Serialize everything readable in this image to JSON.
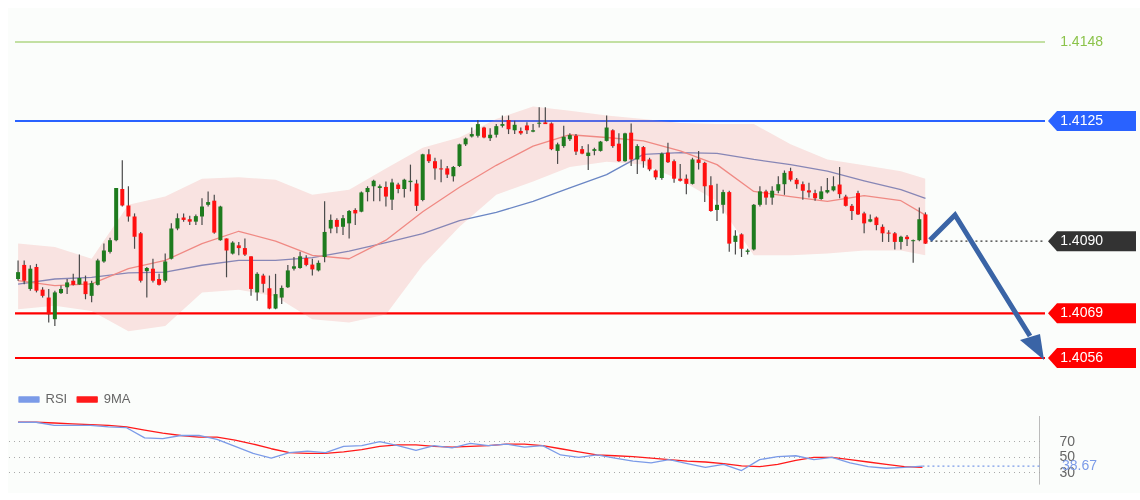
{
  "chart_data": [
    {
      "type": "candlestick",
      "categories": [
        null,
        null,
        null,
        null,
        null,
        null,
        null,
        null,
        null,
        null,
        null,
        null,
        null,
        null,
        null,
        null,
        null,
        null,
        null,
        null,
        null,
        null,
        null,
        null,
        null,
        null,
        null,
        null,
        null,
        null,
        null,
        null,
        null,
        null,
        null,
        null,
        null,
        null,
        null,
        null,
        null,
        null,
        null,
        null,
        null,
        null,
        null,
        null,
        null,
        null,
        null,
        null,
        null,
        null,
        null,
        null,
        null,
        null,
        null,
        null,
        null,
        null,
        null,
        null,
        null,
        null,
        null,
        null,
        null,
        null,
        null,
        null,
        null,
        null,
        null,
        null,
        null,
        null,
        null,
        null,
        null,
        null,
        null,
        null,
        null,
        null,
        null,
        null,
        null,
        null,
        null,
        null,
        null,
        null,
        null,
        null,
        null,
        null,
        null,
        null,
        null,
        null,
        null,
        null,
        null,
        null,
        null,
        null,
        null,
        null,
        null,
        null,
        null,
        null,
        null,
        null,
        null,
        null,
        null,
        null,
        null,
        null,
        null,
        null,
        null,
        null,
        null,
        null,
        null,
        null,
        null,
        null,
        null,
        null,
        null,
        null,
        null,
        null,
        null,
        null,
        null,
        null,
        null,
        null,
        null,
        null,
        null,
        null,
        null,
        null,
        null,
        null,
        null,
        null,
        null,
        null,
        null,
        null,
        null,
        null,
        null,
        null,
        null,
        null,
        null,
        null,
        null,
        null
      ],
      "ohlc": [
        [
          1.4079,
          1.40844,
          1.40785,
          1.4081
        ],
        [
          1.40831,
          1.40844,
          1.40775,
          1.40785
        ],
        [
          1.40761,
          1.4083,
          1.40756,
          1.4082
        ],
        [
          1.40825,
          1.40834,
          1.40751,
          1.40756
        ],
        [
          1.40759,
          1.40766,
          1.40736,
          1.40741
        ],
        [
          1.40736,
          1.40761,
          1.40663,
          1.40687
        ],
        [
          1.40673,
          1.40756,
          1.40653,
          1.40751
        ],
        [
          1.40749,
          1.40771,
          1.40746,
          1.40761
        ],
        [
          1.40766,
          1.4079,
          1.40746,
          1.4078
        ],
        [
          1.40785,
          1.40805,
          1.40771,
          1.40773
        ],
        [
          1.40774,
          1.40861,
          1.40773,
          1.40793
        ],
        [
          1.40783,
          1.408,
          1.40731,
          1.40746
        ],
        [
          1.40741,
          1.40785,
          1.40722,
          1.40778
        ],
        [
          1.40773,
          1.40849,
          1.40771,
          1.40844
        ],
        [
          1.40841,
          1.40893,
          1.40837,
          1.40873
        ],
        [
          1.40869,
          1.4091,
          1.40864,
          1.40903
        ],
        [
          1.40903,
          1.41055,
          1.409,
          1.41055
        ],
        [
          1.41052,
          1.41136,
          1.41001,
          1.41004
        ],
        [
          1.41004,
          1.4106,
          1.40957,
          1.40972
        ],
        [
          1.40972,
          1.40981,
          1.40878,
          1.40913
        ],
        [
          1.40923,
          1.40927,
          1.4078,
          1.40785
        ],
        [
          1.40813,
          1.40825,
          1.40736,
          1.40822
        ],
        [
          1.4082,
          1.40849,
          1.4078,
          1.40785
        ],
        [
          1.4079,
          1.40805,
          1.40771,
          1.40773
        ],
        [
          1.40785,
          1.40864,
          1.4078,
          1.40841
        ],
        [
          1.40849,
          1.40952,
          1.40847,
          1.40937
        ],
        [
          1.40937,
          1.40981,
          1.40932,
          1.40967
        ],
        [
          1.40969,
          1.40981,
          1.40957,
          1.40962
        ],
        [
          1.40964,
          1.40974,
          1.40947,
          1.40957
        ],
        [
          1.40957,
          1.40978,
          1.40947,
          1.40973
        ],
        [
          1.40972,
          1.41025,
          1.40947,
          1.41001
        ],
        [
          1.41006,
          1.41045,
          1.41001,
          1.41014
        ],
        [
          1.41018,
          1.41035,
          1.40922,
          1.40925
        ],
        [
          1.40903,
          1.41003,
          1.40901,
          1.41001
        ],
        [
          1.40908,
          1.40908,
          1.40795,
          1.40873
        ],
        [
          1.40864,
          1.409,
          1.40861,
          1.40896
        ],
        [
          1.40888,
          1.40898,
          1.40859,
          1.4088
        ],
        [
          1.4088,
          1.40908,
          1.40857,
          1.40861
        ],
        [
          1.40856,
          1.40856,
          1.40741,
          1.40761
        ],
        [
          1.40751,
          1.4081,
          1.40727,
          1.40805
        ],
        [
          1.408,
          1.40805,
          1.40751,
          1.40776
        ],
        [
          1.40763,
          1.408,
          1.40702,
          1.40704
        ],
        [
          1.40704,
          1.40805,
          1.40702,
          1.40746
        ],
        [
          1.40736,
          1.40771,
          1.40717,
          1.40764
        ],
        [
          1.40766,
          1.40831,
          1.40764,
          1.40815
        ],
        [
          1.4082,
          1.40854,
          1.40815,
          1.40827
        ],
        [
          1.40822,
          1.40869,
          1.4082,
          1.40856
        ],
        [
          1.40851,
          1.40859,
          1.40827,
          1.40831
        ],
        [
          1.40832,
          1.40849,
          1.408,
          1.40818
        ],
        [
          1.40815,
          1.40844,
          1.40812,
          1.40837
        ],
        [
          1.40854,
          1.41016,
          1.40839,
          1.40927
        ],
        [
          1.40937,
          1.40978,
          1.40923,
          1.40962
        ],
        [
          1.40962,
          1.40967,
          1.40923,
          1.40942
        ],
        [
          1.40942,
          1.40976,
          1.40918,
          1.40967
        ],
        [
          1.40952,
          1.40991,
          1.40908,
          1.40988
        ],
        [
          1.40991,
          1.40996,
          1.40947,
          1.40981
        ],
        [
          1.40986,
          1.41045,
          1.40984,
          1.41042
        ],
        [
          1.41043,
          1.4106,
          1.41016,
          1.41055
        ],
        [
          1.4106,
          1.41079,
          1.41016,
          1.41076
        ],
        [
          1.41055,
          1.41065,
          1.41016,
          1.4106
        ],
        [
          1.41058,
          1.41074,
          1.41001,
          1.4103
        ],
        [
          1.41021,
          1.41082,
          1.40991,
          1.41071
        ],
        [
          1.41065,
          1.4107,
          1.4104,
          1.41052
        ],
        [
          1.41052,
          1.41082,
          1.41027,
          1.41079
        ],
        [
          1.41072,
          1.41123,
          1.41045,
          1.41076
        ],
        [
          1.41068,
          1.41079,
          1.40988,
          1.41003
        ],
        [
          1.4102,
          1.41155,
          1.41016,
          1.41153
        ],
        [
          1.41153,
          1.41168,
          1.41128,
          1.41133
        ],
        [
          1.41133,
          1.41143,
          1.41079,
          1.41112
        ],
        [
          1.41112,
          1.41138,
          1.41072,
          1.41109
        ],
        [
          1.41112,
          1.41119,
          1.41084,
          1.41094
        ],
        [
          1.41089,
          1.41119,
          1.41074,
          1.41116
        ],
        [
          1.41119,
          1.41184,
          1.41116,
          1.41182
        ],
        [
          1.41182,
          1.41202,
          1.41177,
          1.41199
        ],
        [
          1.41205,
          1.41231,
          1.41202,
          1.41212
        ],
        [
          1.41207,
          1.41253,
          1.41202,
          1.41241
        ],
        [
          1.41231,
          1.41233,
          1.412,
          1.41202
        ],
        [
          1.412,
          1.41229,
          1.41192,
          1.4121
        ],
        [
          1.4121,
          1.41241,
          1.41202,
          1.41235
        ],
        [
          1.41236,
          1.41266,
          1.41231,
          1.41241
        ],
        [
          1.41253,
          1.41266,
          1.41212,
          1.41226
        ],
        [
          1.41223,
          1.41251,
          1.41212,
          1.41239
        ],
        [
          1.41221,
          1.41231,
          1.4121,
          1.41214
        ],
        [
          1.41237,
          1.41246,
          1.41212,
          1.41223
        ],
        [
          1.41219,
          1.41241,
          1.41217,
          1.41223
        ],
        [
          1.41243,
          1.4129,
          1.41231,
          1.41245
        ],
        [
          1.41246,
          1.4129,
          1.41241,
          1.41241
        ],
        [
          1.41243,
          1.41246,
          1.41165,
          1.41168
        ],
        [
          1.41163,
          1.41187,
          1.41125,
          1.41182
        ],
        [
          1.41177,
          1.41236,
          1.41172,
          1.41204
        ],
        [
          1.41197,
          1.41214,
          1.41192,
          1.41209
        ],
        [
          1.41207,
          1.41212,
          1.41151,
          1.41161
        ],
        [
          1.41168,
          1.41177,
          1.41153,
          1.41155
        ],
        [
          1.41148,
          1.41182,
          1.41107,
          1.41158
        ],
        [
          1.41163,
          1.41172,
          1.4115,
          1.41168
        ],
        [
          1.41163,
          1.41192,
          1.41161,
          1.4119
        ],
        [
          1.41192,
          1.41266,
          1.4119,
          1.41231
        ],
        [
          1.41223,
          1.41226,
          1.41172,
          1.41177
        ],
        [
          1.41184,
          1.41214,
          1.41131,
          1.41133
        ],
        [
          1.41133,
          1.41216,
          1.41131,
          1.41214
        ],
        [
          1.41216,
          1.41243,
          1.41119,
          1.41138
        ],
        [
          1.41138,
          1.41182,
          1.41096,
          1.41177
        ],
        [
          1.41174,
          1.41177,
          1.41114,
          1.41133
        ],
        [
          1.41138,
          1.41143,
          1.41104,
          1.41109
        ],
        [
          1.41106,
          1.41109,
          1.41079,
          1.41086
        ],
        [
          1.41084,
          1.41158,
          1.41079,
          1.41155
        ],
        [
          1.41158,
          1.41187,
          1.41128,
          1.4113
        ],
        [
          1.41133,
          1.41138,
          1.4107,
          1.41082
        ],
        [
          1.41082,
          1.41125,
          1.41074,
          1.41076
        ],
        [
          1.41082,
          1.41094,
          1.41037,
          1.41067
        ],
        [
          1.41067,
          1.41143,
          1.41065,
          1.41138
        ],
        [
          1.41138,
          1.41163,
          1.41109,
          1.41128
        ],
        [
          1.41128,
          1.41131,
          1.41014,
          1.4106
        ],
        [
          1.41063,
          1.41089,
          1.40986,
          1.40988
        ],
        [
          1.40991,
          1.41067,
          1.40959,
          1.41006
        ],
        [
          1.41006,
          1.4105,
          1.40981,
          1.41043
        ],
        [
          1.41043,
          1.41047,
          1.40869,
          1.40893
        ],
        [
          1.40898,
          1.40932,
          1.40861,
          1.40916
        ],
        [
          1.4092,
          1.40923,
          1.40854,
          1.40878
        ],
        [
          1.40869,
          1.40878,
          1.40861,
          1.40873
        ],
        [
          1.40876,
          1.41008,
          1.40873,
          1.41006
        ],
        [
          1.41006,
          1.4106,
          1.41001,
          1.41045
        ],
        [
          1.41045,
          1.4105,
          1.41006,
          1.41027
        ],
        [
          1.41027,
          1.4106,
          1.41006,
          1.41047
        ],
        [
          1.41047,
          1.41089,
          1.4104,
          1.41066
        ],
        [
          1.41066,
          1.41106,
          1.41035,
          1.41099
        ],
        [
          1.41104,
          1.41114,
          1.41074,
          1.41079
        ],
        [
          1.41079,
          1.41084,
          1.41053,
          1.41066
        ],
        [
          1.41066,
          1.41074,
          1.41021,
          1.41047
        ],
        [
          1.41048,
          1.4107,
          1.41027,
          1.41042
        ],
        [
          1.4104,
          1.4105,
          1.41018,
          1.41025
        ],
        [
          1.41023,
          1.4106,
          1.41021,
          1.41045
        ],
        [
          1.41042,
          1.41084,
          1.41039,
          1.41049
        ],
        [
          1.41048,
          1.41089,
          1.41045,
          1.4106
        ],
        [
          1.41065,
          1.41116,
          1.41025,
          1.41037
        ],
        [
          1.4103,
          1.41035,
          1.41001,
          1.41003
        ],
        [
          1.41003,
          1.41008,
          1.40962,
          1.40988
        ],
        [
          1.4104,
          1.41047,
          1.40976,
          1.40978
        ],
        [
          1.40981,
          1.40986,
          1.40923,
          1.40952
        ],
        [
          1.40957,
          1.40978,
          1.40955,
          1.40964
        ],
        [
          1.40969,
          1.40972,
          1.40932,
          1.40947
        ],
        [
          1.40942,
          1.40949,
          1.40898,
          1.40923
        ],
        [
          1.40925,
          1.40932,
          1.40898,
          1.40923
        ],
        [
          1.40923,
          1.40927,
          1.40876,
          1.40898
        ],
        [
          1.40898,
          1.40916,
          1.40876,
          1.40913
        ],
        [
          1.40913,
          1.40918,
          1.40886,
          1.40906
        ],
        [
          1.40901,
          1.40905,
          1.40837,
          1.40903
        ],
        [
          1.40903,
          1.40998,
          1.409,
          1.40964
        ],
        [
          1.40978,
          1.40984,
          1.40892,
          1.40893
        ],
        null,
        null,
        null,
        null,
        null,
        null,
        null,
        null,
        null,
        null,
        null,
        null,
        null,
        null,
        null,
        null,
        null,
        null,
        null
      ],
      "series": [
        {
          "type": "line",
          "color": "#f08a84",
          "values": [
            1.40785,
            null,
            null,
            null,
            null,
            null,
            1.40771,
            null,
            null,
            null,
            null,
            null,
            1.40776,
            null,
            null,
            null,
            null,
            null,
            1.4082,
            null,
            null,
            null,
            null,
            null,
            1.40844,
            null,
            null,
            null,
            null,
            null,
            1.40893,
            null,
            null,
            null,
            null,
            null,
            1.40929,
            null,
            null,
            null,
            null,
            null,
            1.409,
            null,
            null,
            null,
            null,
            null,
            1.40859,
            null,
            null,
            null,
            null,
            null,
            1.40849,
            null,
            null,
            null,
            null,
            null,
            1.40903,
            null,
            null,
            null,
            null,
            null,
            1.40986,
            null,
            null,
            null,
            null,
            null,
            1.41057,
            null,
            null,
            null,
            null,
            null,
            1.41121,
            null,
            null,
            null,
            null,
            null,
            1.41177,
            null,
            null,
            null,
            null,
            null,
            1.4121,
            null,
            null,
            null,
            null,
            null,
            1.41202,
            null,
            null,
            null,
            null,
            null,
            1.41192,
            null,
            null,
            null,
            null,
            null,
            1.41163,
            null,
            null,
            null,
            null,
            null,
            1.41123,
            null,
            null,
            null,
            null,
            null,
            1.41045,
            null,
            null,
            null,
            null,
            null,
            1.4103,
            null,
            null,
            null,
            null,
            null,
            1.41016,
            null,
            null,
            null,
            null,
            null,
            1.41033,
            null,
            null,
            null,
            null,
            null,
            1.41018,
            null,
            null,
            null,
            1.40976,
            null,
            null,
            null,
            null,
            null,
            null,
            null,
            null,
            null,
            null,
            null,
            null,
            null,
            null,
            null,
            null,
            null,
            null,
            null
          ],
          "lower": [
            1.40702,
            null,
            null,
            null,
            null,
            null,
            1.40712,
            null,
            null,
            null,
            null,
            null,
            1.40697,
            null,
            null,
            null,
            null,
            null,
            1.40638,
            null,
            null,
            null,
            null,
            null,
            1.40653,
            null,
            null,
            null,
            null,
            null,
            1.40751,
            null,
            null,
            null,
            null,
            null,
            1.40759,
            null,
            null,
            null,
            null,
            null,
            1.40739,
            null,
            null,
            null,
            null,
            null,
            1.40673,
            null,
            null,
            null,
            null,
            null,
            1.40663,
            null,
            null,
            null,
            null,
            null,
            1.40687,
            null,
            null,
            null,
            null,
            null,
            1.4083,
            null,
            null,
            null,
            null,
            null,
            1.40942,
            null,
            null,
            null,
            null,
            null,
            1.41035,
            null,
            null,
            null,
            null,
            null,
            1.41074,
            null,
            null,
            null,
            null,
            null,
            1.41116,
            null,
            null,
            null,
            null,
            null,
            1.41131,
            null,
            null,
            null,
            null,
            null,
            1.41123,
            null,
            null,
            null,
            null,
            null,
            1.41079,
            null,
            null,
            null,
            null,
            null,
            1.41016,
            null,
            null,
            null,
            null,
            null,
            1.40859,
            null,
            null,
            null,
            null,
            null,
            1.40859,
            null,
            null,
            null,
            null,
            null,
            1.40864,
            null,
            null,
            null,
            null,
            null,
            1.40873,
            null,
            null,
            null,
            null,
            null,
            1.40873,
            null,
            null,
            null,
            1.40859,
            null,
            null,
            null,
            null,
            null,
            null,
            null,
            null,
            null,
            null,
            null,
            null,
            null,
            null,
            null,
            null,
            null,
            null,
            null
          ],
          "upper": [
            1.40893,
            null,
            null,
            null,
            null,
            null,
            1.40883,
            null,
            null,
            null,
            null,
            null,
            1.40849,
            null,
            null,
            null,
            null,
            null,
            1.41006,
            null,
            null,
            null,
            null,
            null,
            1.4103,
            null,
            null,
            null,
            null,
            null,
            1.41082,
            null,
            null,
            null,
            null,
            null,
            1.41086,
            null,
            null,
            null,
            null,
            null,
            1.41079,
            null,
            null,
            null,
            null,
            null,
            1.41035,
            null,
            null,
            null,
            null,
            null,
            1.4105,
            null,
            null,
            null,
            null,
            null,
            1.41112,
            null,
            null,
            null,
            null,
            null,
            1.41172,
            null,
            null,
            null,
            null,
            null,
            1.41202,
            null,
            null,
            null,
            null,
            null,
            1.41256,
            null,
            null,
            null,
            null,
            null,
            1.41292,
            null,
            null,
            null,
            null,
            null,
            1.4128,
            null,
            null,
            null,
            null,
            null,
            1.41266,
            null,
            null,
            null,
            null,
            null,
            1.41256,
            null,
            null,
            null,
            null,
            null,
            1.41244,
            null,
            null,
            null,
            null,
            null,
            1.41241,
            null,
            null,
            null,
            null,
            null,
            1.41241,
            null,
            null,
            null,
            null,
            null,
            1.41182,
            null,
            null,
            null,
            null,
            null,
            1.41138,
            null,
            null,
            null,
            null,
            null,
            1.41121,
            null,
            null,
            null,
            null,
            null,
            1.41104,
            null,
            null,
            null,
            1.41082,
            null,
            null,
            null,
            null,
            null,
            null,
            null,
            null,
            null,
            null,
            null,
            null,
            null,
            null,
            null,
            null,
            null,
            null,
            null
          ]
        },
        {
          "type": "line",
          "color": "#6a86c4",
          "values": [
            1.40775,
            null,
            null,
            null,
            null,
            null,
            1.4079,
            null,
            null,
            null,
            null,
            null,
            1.40795,
            null,
            null,
            null,
            null,
            null,
            1.40808,
            null,
            null,
            null,
            null,
            null,
            1.4081,
            null,
            null,
            null,
            null,
            null,
            1.4083,
            null,
            null,
            null,
            null,
            null,
            1.40844,
            null,
            null,
            null,
            null,
            null,
            1.40844,
            null,
            null,
            null,
            null,
            null,
            1.40852,
            null,
            null,
            null,
            null,
            null,
            1.40871,
            null,
            null,
            null,
            null,
            null,
            1.40896,
            null,
            null,
            null,
            null,
            null,
            1.40922,
            null,
            null,
            null,
            null,
            null,
            1.4096,
            null,
            null,
            null,
            null,
            null,
            1.40984,
            null,
            null,
            null,
            null,
            null,
            1.41016,
            null,
            null,
            null,
            null,
            null,
            1.41055,
            null,
            null,
            null,
            null,
            null,
            1.41094,
            null,
            null,
            null,
            null,
            null,
            1.41153,
            null,
            null,
            null,
            null,
            null,
            1.41158,
            null,
            null,
            null,
            null,
            null,
            1.41156,
            null,
            null,
            null,
            null,
            null,
            1.41138,
            null,
            null,
            null,
            null,
            null,
            1.41123,
            null,
            null,
            null,
            null,
            null,
            1.41104,
            null,
            null,
            null,
            null,
            null,
            1.41076,
            null,
            null,
            null,
            null,
            null,
            1.4105,
            null,
            null,
            null,
            1.41025,
            null,
            null,
            null,
            null,
            null,
            null,
            null,
            null,
            null,
            null,
            null,
            null,
            null,
            null,
            null,
            null,
            null,
            null,
            null
          ]
        }
      ],
      "ylim": [
        1.4056,
        1.4148
      ],
      "yticks": [
        1.4148,
        1.4125,
        {
          "value": 1.409,
          "label": "1.4090"
        },
        1.4069,
        1.4056
      ],
      "tick_labels": "y",
      "marker": "none",
      "ref_lines": [
        {
          "axis": "y",
          "value": 1.4148,
          "color": "#8bc34a"
        },
        {
          "axis": "y",
          "value": 1.4125,
          "color": "#2962ff"
        },
        {
          "axis": "y",
          "value": 1.409,
          "color": "#333333",
          "line_style": "dotted"
        },
        {
          "axis": "y",
          "value": 1.4069,
          "color": "#ff0000"
        },
        {
          "axis": "y",
          "value": 1.4056,
          "color": "#ff0000"
        }
      ]
    },
    {
      "type": "line",
      "categories": [
        null,
        null,
        null,
        null,
        null,
        null,
        null,
        null,
        null,
        null,
        null,
        null,
        null,
        null,
        null,
        null,
        null,
        null,
        null,
        null,
        null,
        null,
        null,
        null,
        null,
        null,
        null,
        null,
        null,
        null,
        null,
        null,
        null,
        null,
        null,
        null,
        null,
        null,
        null,
        null,
        null,
        null,
        null,
        null,
        null,
        null,
        null,
        null,
        null,
        null,
        null,
        null,
        null,
        null,
        null,
        null,
        null
      ],
      "series": [
        {
          "name": "RSI",
          "color": "#7b9be8",
          "values": [
            95,
            95,
            91,
            91,
            91,
            89,
            88,
            75,
            74,
            78,
            78,
            73,
            64,
            55,
            49,
            56,
            58,
            56,
            64,
            65,
            70,
            65,
            59,
            65,
            62,
            68,
            65,
            67,
            63,
            65,
            53,
            50,
            53,
            49,
            45,
            43,
            47,
            42,
            37,
            41,
            33,
            47,
            51,
            52,
            47,
            50,
            43,
            38,
            36,
            37,
            38.67,
            null,
            null,
            null,
            null,
            null,
            null
          ]
        },
        {
          "name": "9MA",
          "color": "#ff1a1a",
          "values": [
            95,
            95,
            94,
            93,
            92,
            91,
            89,
            85,
            81,
            78,
            76,
            76,
            72,
            67,
            61,
            56,
            55,
            55,
            57,
            60,
            64,
            66,
            66,
            64,
            63,
            64,
            65,
            67,
            67,
            65,
            61,
            57,
            53,
            52,
            51,
            49,
            47,
            45,
            44,
            42,
            39,
            38,
            41,
            46,
            50,
            50,
            47,
            44,
            41,
            38,
            37,
            null,
            null,
            null,
            null,
            null,
            null
          ]
        }
      ],
      "ylim": [
        15,
        103
      ],
      "yticks": [
        30,
        50,
        70
      ],
      "grid": "y",
      "legend": "top left",
      "tick_labels": "y",
      "marker": "none",
      "ref_lines": [
        {
          "axis": "y",
          "value": 38.67,
          "label": "38.67",
          "color": "#7b9be8",
          "line_style": "dotted"
        }
      ]
    }
  ]
}
